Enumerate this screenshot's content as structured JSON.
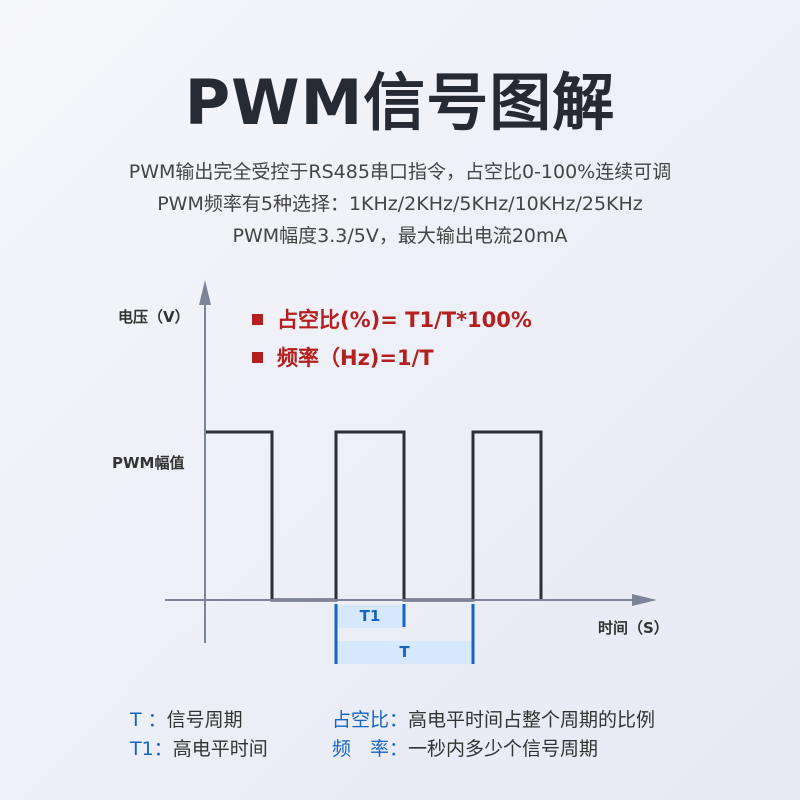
{
  "title": "PWM信号图解",
  "description": [
    "PWM输出完全受控于RS485串口指令，占空比0-100%连续可调",
    "PWM频率有5种选择：1KHz/2KHz/5KHz/10KHz/25KHz",
    "PWM幅度3.3/5V，最大输出电流20mA"
  ],
  "diagram": {
    "y_axis_label": "电压（V）",
    "x_axis_label": "时间（S）",
    "amplitude_label": "PWM幅值",
    "formulas": [
      "占空比(%)= T1/T*100%",
      "频率（Hz)=1/T"
    ],
    "t1_label": "T1",
    "t_label": "T",
    "colors": {
      "formula": "#b3201f",
      "marker": "#1565c0",
      "marker_fill": "#cfe4fb",
      "waveform": "#2b2f38",
      "axis": "#7e8497"
    }
  },
  "legend": [
    {
      "term": "T ：",
      "definition": "信号周期"
    },
    {
      "term": "T1：",
      "definition": "高电平时间"
    },
    {
      "term": "占空比：",
      "definition": "高电平时间占整个周期的比例"
    },
    {
      "term": "频　率：",
      "definition": "一秒内多少个信号周期"
    }
  ]
}
